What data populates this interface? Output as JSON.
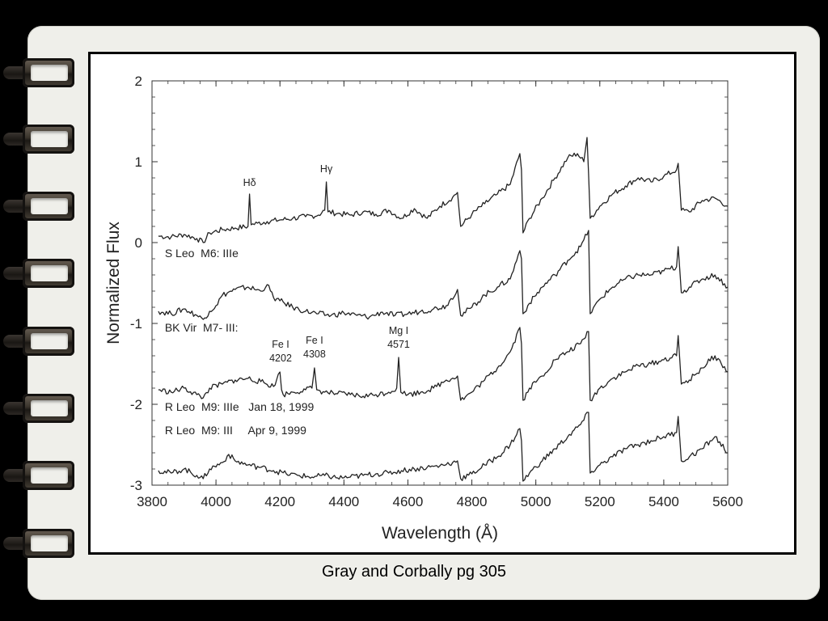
{
  "caption": "Gray and Corbally pg 305",
  "colors": {
    "background": "#000000",
    "paper": "#efefea",
    "chart_bg": "#ffffff",
    "line": "#222222"
  },
  "chart_data": {
    "type": "line",
    "xlabel": "Wavelength (Å)",
    "ylabel": "Normalized Flux",
    "xlim": [
      3800,
      5600
    ],
    "ylim": [
      -3,
      2
    ],
    "xticks": [
      "3800",
      "4000",
      "4200",
      "4400",
      "4600",
      "4800",
      "5000",
      "5200",
      "5400",
      "5600"
    ],
    "yticks": [
      "2",
      "1",
      "0",
      "-1",
      "-2",
      "-3"
    ],
    "grid": false,
    "series": [
      {
        "name": "S Leo  M6: IIIe",
        "x": [
          3820,
          3860,
          3900,
          3940,
          3960,
          3980,
          4020,
          4060,
          4100,
          4105,
          4110,
          4130,
          4160,
          4200,
          4240,
          4280,
          4320,
          4340,
          4345,
          4350,
          4380,
          4420,
          4460,
          4500,
          4540,
          4580,
          4620,
          4660,
          4700,
          4740,
          4755,
          4765,
          4800,
          4840,
          4880,
          4920,
          4950,
          4955,
          4960,
          4980,
          5020,
          5060,
          5100,
          5130,
          5150,
          5160,
          5165,
          5170,
          5200,
          5240,
          5280,
          5320,
          5360,
          5400,
          5440,
          5445,
          5455,
          5480,
          5520,
          5560,
          5600
        ],
        "y": [
          0.08,
          0.07,
          0.1,
          0.05,
          0.0,
          0.12,
          0.16,
          0.18,
          0.2,
          0.6,
          0.22,
          0.24,
          0.26,
          0.28,
          0.3,
          0.32,
          0.34,
          0.4,
          0.75,
          0.38,
          0.36,
          0.34,
          0.38,
          0.35,
          0.4,
          0.3,
          0.42,
          0.3,
          0.45,
          0.56,
          0.62,
          0.2,
          0.35,
          0.48,
          0.6,
          0.72,
          1.1,
          0.9,
          0.12,
          0.3,
          0.55,
          0.8,
          1.05,
          1.1,
          1.0,
          1.3,
          0.85,
          0.3,
          0.45,
          0.6,
          0.7,
          0.8,
          0.75,
          0.82,
          0.9,
          0.98,
          0.4,
          0.38,
          0.52,
          0.55,
          0.45
        ]
      },
      {
        "name": "BK Vir  M7- III:",
        "x": [
          3820,
          3860,
          3900,
          3940,
          3960,
          3980,
          4000,
          4020,
          4060,
          4100,
          4140,
          4160,
          4180,
          4200,
          4240,
          4280,
          4320,
          4360,
          4400,
          4440,
          4480,
          4520,
          4560,
          4600,
          4640,
          4680,
          4720,
          4755,
          4765,
          4800,
          4840,
          4880,
          4920,
          4950,
          4955,
          4960,
          4980,
          5020,
          5060,
          5100,
          5140,
          5165,
          5170,
          5200,
          5240,
          5280,
          5320,
          5360,
          5400,
          5440,
          5445,
          5455,
          5480,
          5520,
          5560,
          5600
        ],
        "y": [
          -0.85,
          -0.88,
          -0.82,
          -0.9,
          -0.95,
          -0.85,
          -0.78,
          -0.65,
          -0.58,
          -0.55,
          -0.6,
          -0.52,
          -0.68,
          -0.72,
          -0.8,
          -0.85,
          -0.88,
          -0.9,
          -0.87,
          -0.9,
          -0.92,
          -0.86,
          -0.9,
          -0.88,
          -0.85,
          -0.82,
          -0.78,
          -0.58,
          -0.9,
          -0.8,
          -0.65,
          -0.55,
          -0.45,
          -0.1,
          -0.2,
          -0.88,
          -0.75,
          -0.55,
          -0.4,
          -0.22,
          -0.05,
          0.15,
          -0.88,
          -0.7,
          -0.55,
          -0.45,
          -0.4,
          -0.4,
          -0.35,
          -0.3,
          -0.05,
          -0.62,
          -0.55,
          -0.45,
          -0.4,
          -0.55
        ]
      },
      {
        "name": "R Leo  M9: IIIe   Jan 18, 1999",
        "x": [
          3820,
          3860,
          3900,
          3940,
          3960,
          3980,
          4020,
          4060,
          4100,
          4140,
          4180,
          4200,
          4205,
          4210,
          4240,
          4280,
          4300,
          4308,
          4315,
          4340,
          4380,
          4420,
          4460,
          4500,
          4540,
          4565,
          4571,
          4578,
          4600,
          4640,
          4680,
          4720,
          4755,
          4765,
          4800,
          4840,
          4880,
          4920,
          4950,
          4955,
          4960,
          4980,
          5020,
          5060,
          5100,
          5140,
          5165,
          5170,
          5200,
          5240,
          5280,
          5320,
          5360,
          5400,
          5440,
          5445,
          5455,
          5480,
          5520,
          5560,
          5600
        ],
        "y": [
          -1.82,
          -1.85,
          -1.8,
          -1.88,
          -1.92,
          -1.8,
          -1.75,
          -1.7,
          -1.68,
          -1.72,
          -1.78,
          -1.6,
          -1.82,
          -1.88,
          -1.85,
          -1.82,
          -1.8,
          -1.55,
          -1.82,
          -1.85,
          -1.87,
          -1.88,
          -1.9,
          -1.88,
          -1.85,
          -1.8,
          -1.42,
          -1.85,
          -1.88,
          -1.85,
          -1.8,
          -1.7,
          -1.65,
          -1.95,
          -1.85,
          -1.7,
          -1.55,
          -1.35,
          -1.05,
          -1.25,
          -1.95,
          -1.8,
          -1.65,
          -1.45,
          -1.35,
          -1.25,
          -1.1,
          -1.95,
          -1.8,
          -1.68,
          -1.6,
          -1.52,
          -1.5,
          -1.45,
          -1.4,
          -1.15,
          -1.75,
          -1.7,
          -1.55,
          -1.4,
          -1.6
        ]
      },
      {
        "name": "R Leo  M9: III     Apr 9, 1999",
        "x": [
          3820,
          3860,
          3900,
          3940,
          3960,
          3980,
          4020,
          4040,
          4060,
          4100,
          4140,
          4180,
          4220,
          4260,
          4300,
          4340,
          4380,
          4420,
          4460,
          4500,
          4540,
          4580,
          4620,
          4660,
          4700,
          4740,
          4755,
          4765,
          4800,
          4840,
          4880,
          4920,
          4950,
          4955,
          4960,
          4980,
          5020,
          5060,
          5100,
          5140,
          5165,
          5170,
          5200,
          5240,
          5280,
          5320,
          5360,
          5400,
          5440,
          5445,
          5455,
          5480,
          5520,
          5560,
          5600
        ],
        "y": [
          -2.82,
          -2.85,
          -2.8,
          -2.88,
          -2.92,
          -2.8,
          -2.72,
          -2.62,
          -2.7,
          -2.75,
          -2.78,
          -2.82,
          -2.86,
          -2.88,
          -2.9,
          -2.88,
          -2.91,
          -2.9,
          -2.88,
          -2.86,
          -2.85,
          -2.82,
          -2.8,
          -2.78,
          -2.76,
          -2.72,
          -2.7,
          -2.92,
          -2.86,
          -2.75,
          -2.65,
          -2.5,
          -2.3,
          -2.45,
          -2.95,
          -2.85,
          -2.7,
          -2.55,
          -2.4,
          -2.25,
          -2.1,
          -2.85,
          -2.75,
          -2.65,
          -2.55,
          -2.5,
          -2.45,
          -2.4,
          -2.35,
          -2.15,
          -2.7,
          -2.65,
          -2.55,
          -2.4,
          -2.6
        ]
      }
    ],
    "annotations": [
      {
        "text": "Hδ",
        "x": 4105,
        "y": 0.7
      },
      {
        "text": "Hγ",
        "x": 4345,
        "y": 0.87
      },
      {
        "text": "Fe I",
        "x": 4202,
        "y": -1.3
      },
      {
        "text": "4202",
        "x": 4202,
        "y": -1.47
      },
      {
        "text": "Fe I",
        "x": 4308,
        "y": -1.25
      },
      {
        "text": "4308",
        "x": 4308,
        "y": -1.42
      },
      {
        "text": "Mg I",
        "x": 4571,
        "y": -1.13
      },
      {
        "text": "4571",
        "x": 4571,
        "y": -1.3
      }
    ],
    "series_labels": [
      {
        "text": "S Leo  M6: IIIe",
        "x": 3840,
        "y": -0.18
      },
      {
        "text": "BK Vir  M7- III:",
        "x": 3840,
        "y": -1.1
      },
      {
        "text": "R Leo  M9: IIIe   Jan 18, 1999",
        "x": 3840,
        "y": -2.08
      },
      {
        "text": "R Leo  M9: III     Apr 9, 1999",
        "x": 3840,
        "y": -2.37
      }
    ]
  }
}
